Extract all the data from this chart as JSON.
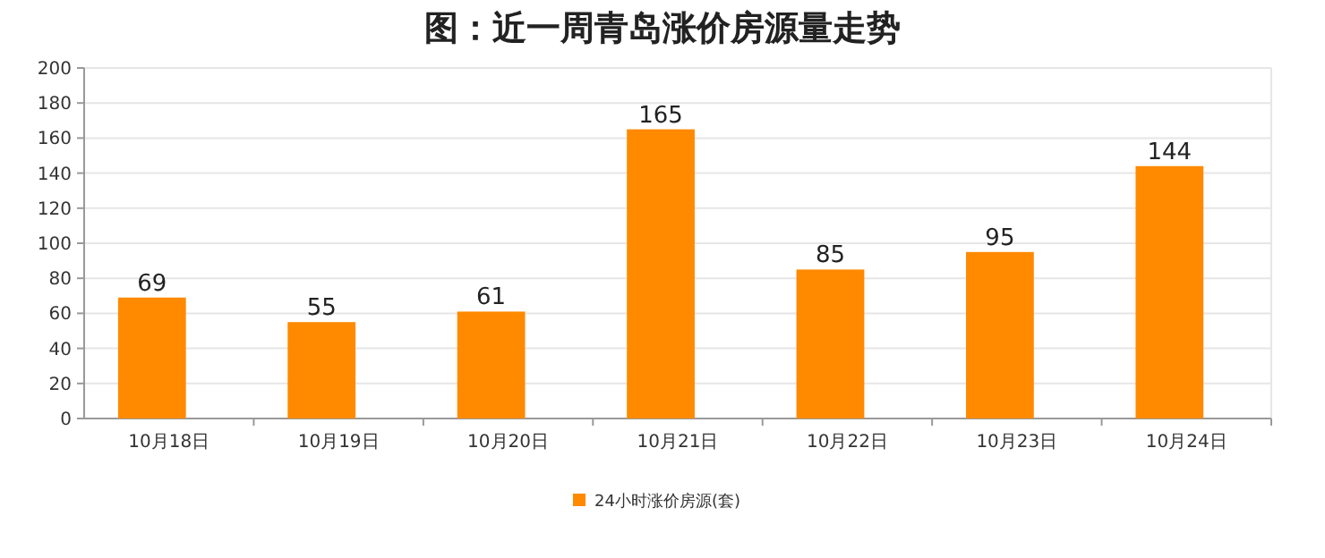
{
  "chart_data": {
    "type": "bar",
    "title": "图：近一周青岛涨价房源量走势",
    "categories": [
      "10月18日",
      "10月19日",
      "10月20日",
      "10月21日",
      "10月22日",
      "10月23日",
      "10月24日"
    ],
    "series": [
      {
        "name": "24小时涨价房源(套)",
        "color": "#ff8a00",
        "values": [
          69,
          55,
          61,
          165,
          85,
          95,
          144
        ]
      }
    ],
    "ylim": [
      0,
      200
    ],
    "yticks": [
      0,
      20,
      40,
      60,
      80,
      100,
      120,
      140,
      160,
      180,
      200
    ],
    "grid": "y",
    "legend": "bottom",
    "data_labels": true
  }
}
